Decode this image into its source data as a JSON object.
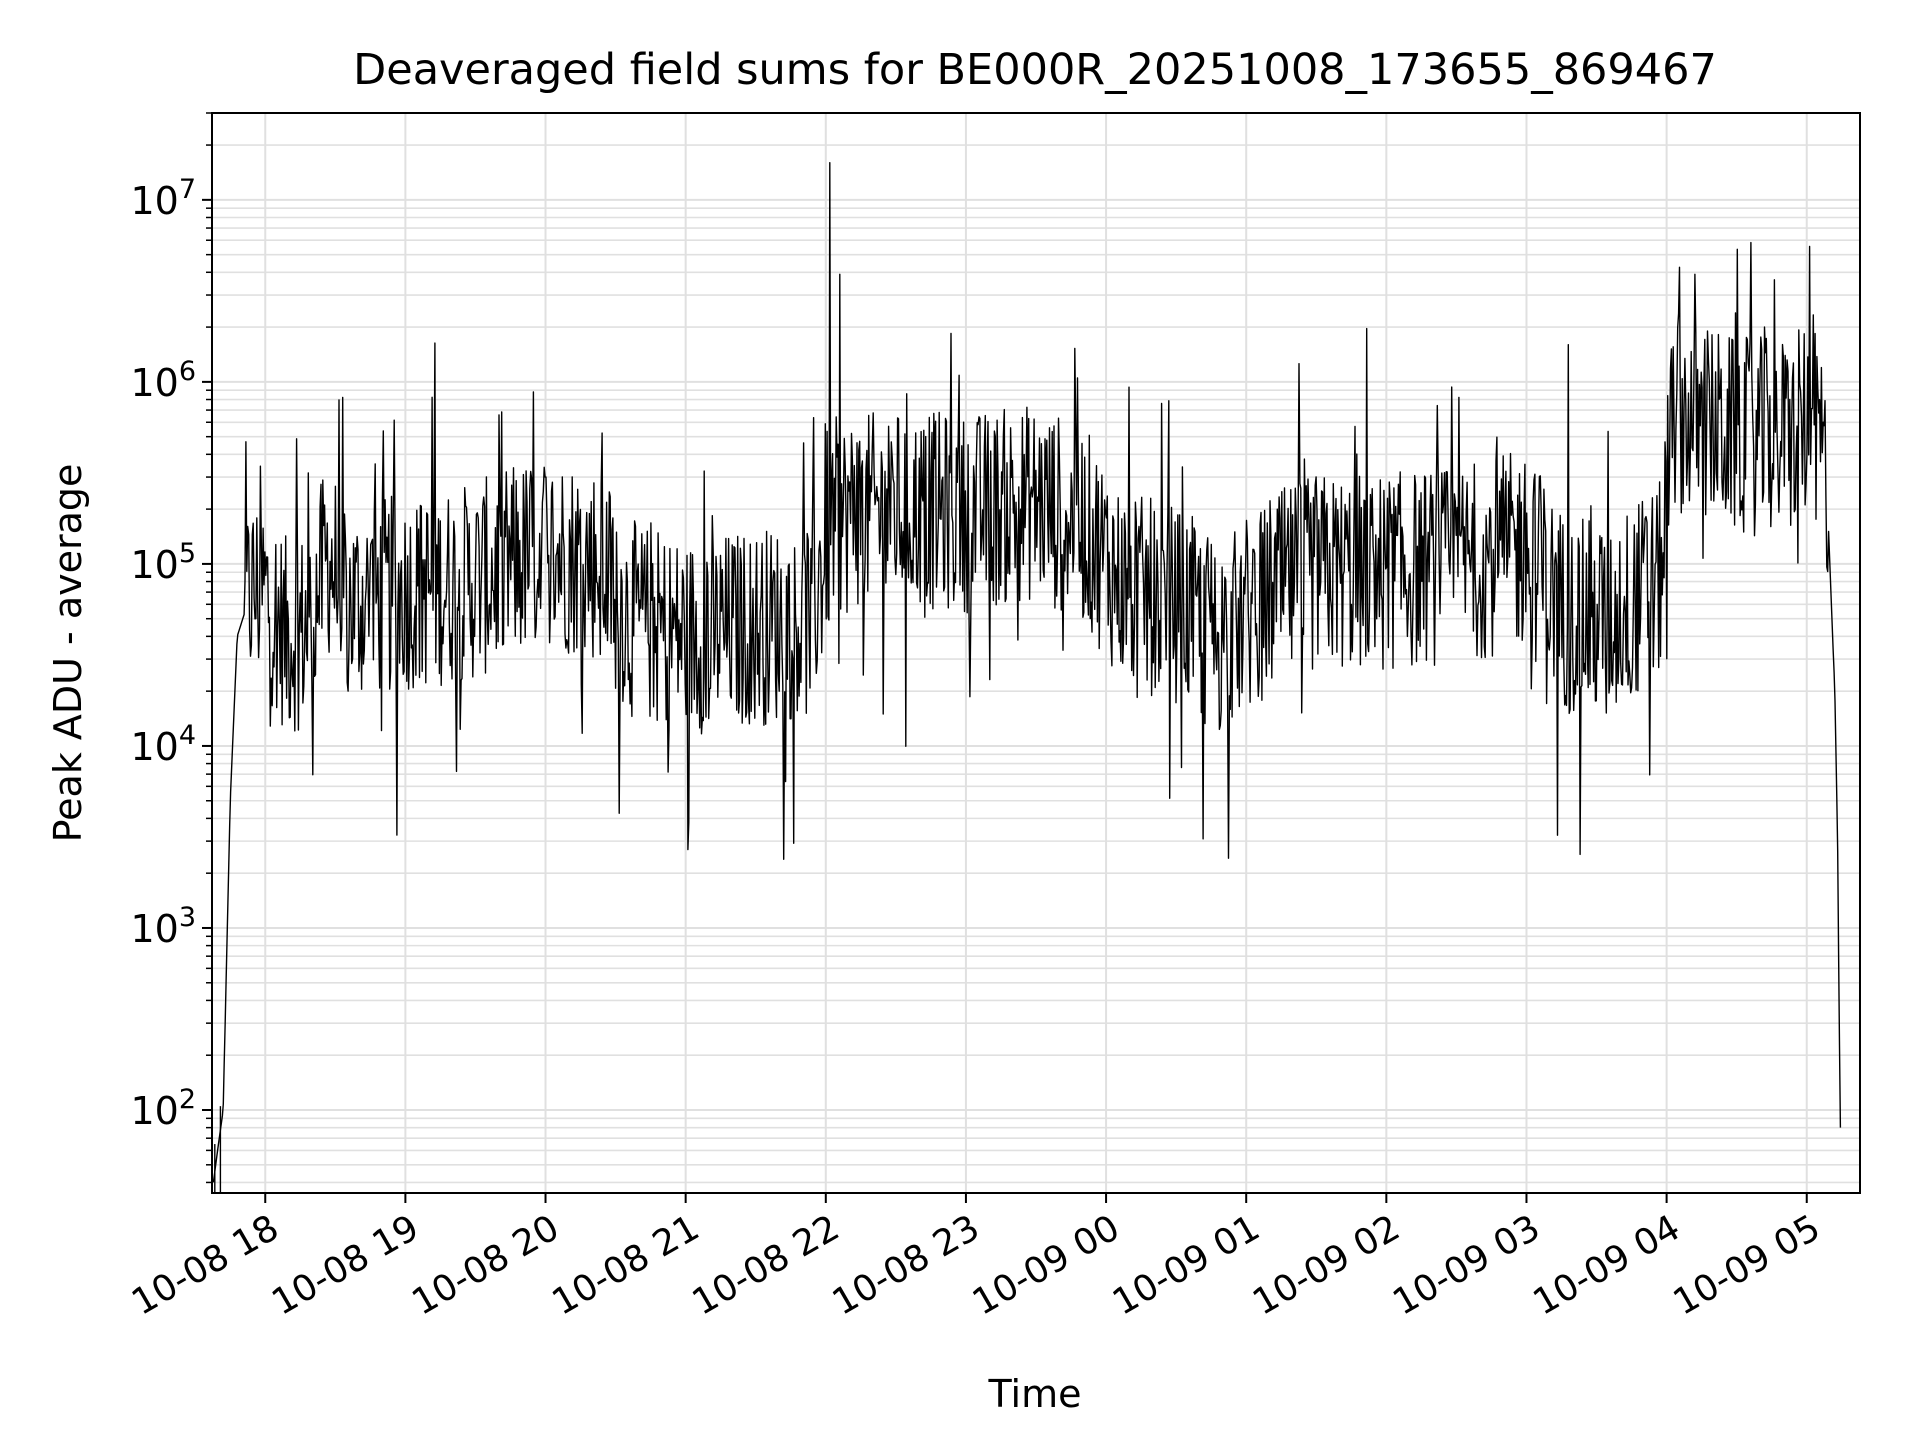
{
  "chart_data": {
    "type": "line",
    "title": "Deaveraged field sums for BE000R_20251008_173655_869467",
    "xlabel": "Time",
    "ylabel": "Peak ADU - average",
    "yscale": "log",
    "xlim_hours": [
      17.62,
      29.38
    ],
    "ylim": [
      35,
      30000000
    ],
    "x_unit": "hours since 2025-10-08 00:00",
    "x_ticks": [
      {
        "value": 18,
        "label": "10-08 18"
      },
      {
        "value": 19,
        "label": "10-08 19"
      },
      {
        "value": 20,
        "label": "10-08 20"
      },
      {
        "value": 21,
        "label": "10-08 21"
      },
      {
        "value": 22,
        "label": "10-08 22"
      },
      {
        "value": 23,
        "label": "10-08 23"
      },
      {
        "value": 24,
        "label": "10-09 00"
      },
      {
        "value": 25,
        "label": "10-09 01"
      },
      {
        "value": 26,
        "label": "10-09 02"
      },
      {
        "value": 27,
        "label": "10-09 03"
      },
      {
        "value": 28,
        "label": "10-09 04"
      },
      {
        "value": 29,
        "label": "10-09 05"
      }
    ],
    "y_ticks": [
      {
        "value": 100,
        "base": "10",
        "exp": "2"
      },
      {
        "value": 1000,
        "base": "10",
        "exp": "3"
      },
      {
        "value": 10000,
        "base": "10",
        "exp": "4"
      },
      {
        "value": 100000,
        "base": "10",
        "exp": "5"
      },
      {
        "value": 1000000,
        "base": "10",
        "exp": "6"
      },
      {
        "value": 10000000,
        "base": "10",
        "exp": "7"
      }
    ],
    "grid": true,
    "line_color": "#000000",
    "grid_color": "#e0e0e0",
    "series": [
      {
        "name": "field sums",
        "envelope": [
          [
            17.63,
            40
          ],
          [
            17.66,
            60
          ],
          [
            17.7,
            100
          ],
          [
            17.72,
            500
          ],
          [
            17.75,
            5000
          ],
          [
            17.8,
            40000
          ],
          [
            17.9,
            70000
          ],
          [
            18.0,
            70000
          ],
          [
            18.15,
            40000
          ],
          [
            18.3,
            45000
          ],
          [
            18.45,
            110000
          ],
          [
            18.6,
            60000
          ],
          [
            19.0,
            70000
          ],
          [
            19.5,
            80000
          ],
          [
            20.0,
            120000
          ],
          [
            20.4,
            100000
          ],
          [
            20.6,
            50000
          ],
          [
            21.0,
            40000
          ],
          [
            21.5,
            45000
          ],
          [
            21.9,
            50000
          ],
          [
            22.05,
            180000
          ],
          [
            22.5,
            200000
          ],
          [
            23.0,
            190000
          ],
          [
            23.5,
            220000
          ],
          [
            23.85,
            160000
          ],
          [
            24.15,
            70000
          ],
          [
            24.5,
            60000
          ],
          [
            24.8,
            40000
          ],
          [
            25.2,
            70000
          ],
          [
            25.5,
            90000
          ],
          [
            26.0,
            90000
          ],
          [
            26.5,
            100000
          ],
          [
            27.0,
            120000
          ],
          [
            27.3,
            50000
          ],
          [
            27.6,
            50000
          ],
          [
            27.95,
            80000
          ],
          [
            28.05,
            700000
          ],
          [
            28.5,
            500000
          ],
          [
            28.9,
            500000
          ],
          [
            29.05,
            700000
          ],
          [
            29.1,
            500000
          ],
          [
            29.15,
            200000
          ],
          [
            29.2,
            20000
          ],
          [
            29.22,
            3000
          ],
          [
            29.23,
            400
          ],
          [
            29.24,
            80
          ]
        ],
        "spikes": [
          {
            "x": 22.03,
            "y": 16000000
          },
          {
            "x": 22.1,
            "y": 3900000
          },
          {
            "x": 27.3,
            "y": 1600000
          },
          {
            "x": 28.2,
            "y": 3900000
          },
          {
            "x": 28.7,
            "y": 2000000
          },
          {
            "x": 20.0,
            "y": 300000
          }
        ]
      }
    ]
  }
}
